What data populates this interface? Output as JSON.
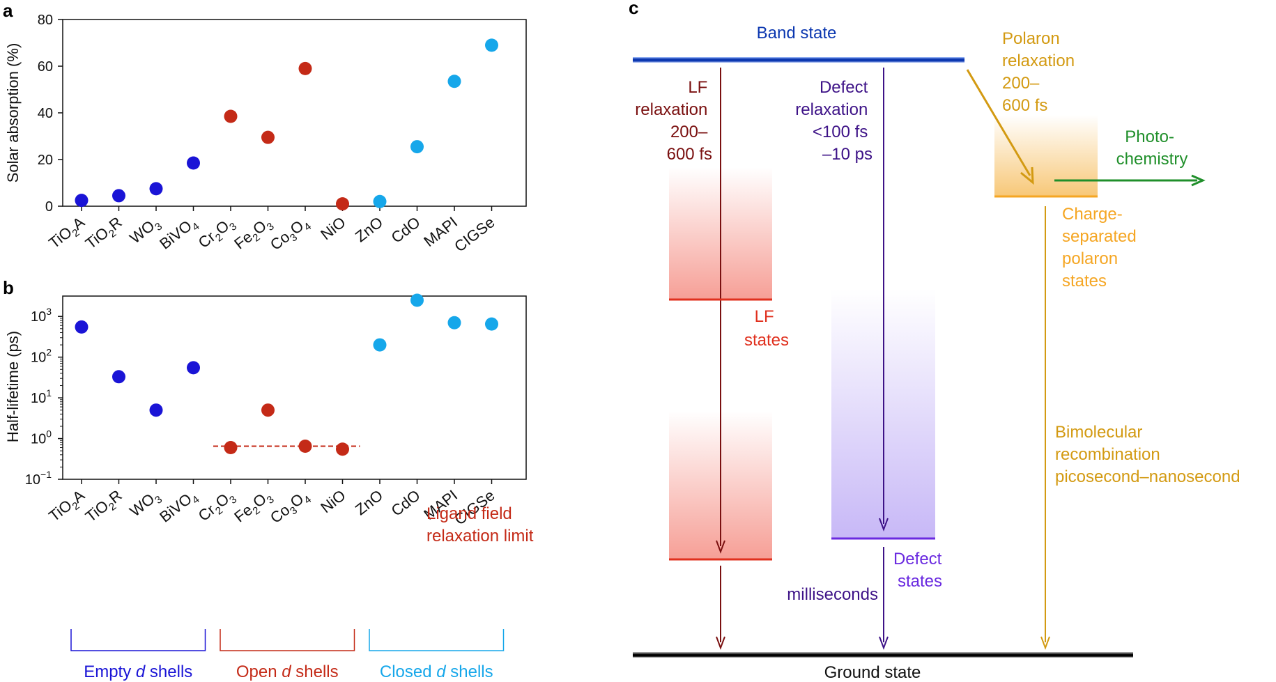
{
  "panel_labels": {
    "a": "a",
    "b": "b",
    "c": "c"
  },
  "colors": {
    "empty": "#1a14d6",
    "open": "#c42a17",
    "closed": "#16a7ea",
    "lf": "#7a1010",
    "defect": "#3d1287",
    "polaron": "#d39a12",
    "photochem": "#1f8f2a",
    "band": "#0b37b0"
  },
  "chart_data": [
    {
      "type": "scatter",
      "id": "a",
      "title": "",
      "xlabel": "",
      "ylabel": "Solar absorption (%)",
      "ylim": [
        0,
        80
      ],
      "yticks": [
        "0",
        "20",
        "40",
        "60",
        "80"
      ],
      "categories": [
        "TiO2A",
        "TiO2R",
        "WO3",
        "BiVO4",
        "Cr2O3",
        "Fe2O3",
        "Co3O4",
        "NiO",
        "ZnO",
        "CdO",
        "MAPI",
        "CIGSe"
      ],
      "groups": [
        "empty",
        "empty",
        "empty",
        "empty",
        "open",
        "open",
        "open",
        "open",
        "closed",
        "closed",
        "closed",
        "closed"
      ],
      "values": [
        2.5,
        4.5,
        7.5,
        18.5,
        38.5,
        29.5,
        59,
        1,
        2,
        25.5,
        53.5,
        69
      ]
    },
    {
      "type": "scatter",
      "id": "b",
      "title": "",
      "xlabel": "",
      "ylabel": "Half-lifetime (ps)",
      "yscale": "log",
      "ylim_log10": [
        -1,
        3.5
      ],
      "yticks": [
        {
          "base": "10",
          "exp": "−1",
          "v": -1
        },
        {
          "base": "10",
          "exp": "0",
          "v": 0
        },
        {
          "base": "10",
          "exp": "1",
          "v": 1
        },
        {
          "base": "10",
          "exp": "2",
          "v": 2
        },
        {
          "base": "10",
          "exp": "3",
          "v": 3
        }
      ],
      "categories": [
        "TiO2A",
        "TiO2R",
        "WO3",
        "BiVO4",
        "Cr2O3",
        "Fe2O3",
        "Co3O4",
        "NiO",
        "ZnO",
        "CdO",
        "MAPI",
        "CIGSe"
      ],
      "groups": [
        "empty",
        "empty",
        "empty",
        "empty",
        "open",
        "open",
        "open",
        "open",
        "closed",
        "closed",
        "closed",
        "closed"
      ],
      "values": [
        550,
        33,
        5,
        55,
        0.6,
        5,
        0.65,
        0.55,
        200,
        2500,
        700,
        650
      ],
      "limit_line": {
        "value": 0.65,
        "label_lines": [
          "Ligand field",
          "relaxation limit"
        ]
      }
    }
  ],
  "category_labels": [
    {
      "parts": [
        [
          "TiO",
          ""
        ],
        [
          "2",
          "sub"
        ],
        [
          "A",
          ""
        ]
      ]
    },
    {
      "parts": [
        [
          "TiO",
          ""
        ],
        [
          "2",
          "sub"
        ],
        [
          "R",
          ""
        ]
      ]
    },
    {
      "parts": [
        [
          "WO",
          ""
        ],
        [
          "3",
          "sub"
        ]
      ]
    },
    {
      "parts": [
        [
          "BiVO",
          ""
        ],
        [
          "4",
          "sub"
        ]
      ]
    },
    {
      "parts": [
        [
          "Cr",
          ""
        ],
        [
          "2",
          "sub"
        ],
        [
          "O",
          ""
        ],
        [
          "3",
          "sub"
        ]
      ]
    },
    {
      "parts": [
        [
          "Fe",
          ""
        ],
        [
          "2",
          "sub"
        ],
        [
          "O",
          ""
        ],
        [
          "3",
          "sub"
        ]
      ]
    },
    {
      "parts": [
        [
          "Co",
          ""
        ],
        [
          "3",
          "sub"
        ],
        [
          "O",
          ""
        ],
        [
          "4",
          "sub"
        ]
      ]
    },
    {
      "parts": [
        [
          "NiO",
          ""
        ]
      ]
    },
    {
      "parts": [
        [
          "ZnO",
          ""
        ]
      ]
    },
    {
      "parts": [
        [
          "CdO",
          ""
        ]
      ]
    },
    {
      "parts": [
        [
          "MAPI",
          ""
        ]
      ]
    },
    {
      "parts": [
        [
          "CIGSe",
          ""
        ]
      ]
    }
  ],
  "brackets": [
    {
      "group": "empty",
      "pre": "Empty ",
      "italic": "d",
      "post": " shells"
    },
    {
      "group": "open",
      "pre": "Open ",
      "italic": "d",
      "post": " shells"
    },
    {
      "group": "closed",
      "pre": "Closed ",
      "italic": "d",
      "post": " shells"
    }
  ],
  "diagram": {
    "band_state": "Band state",
    "ground_state": "Ground state",
    "lf_relax": [
      "LF",
      "relaxation",
      "200–",
      "600 fs"
    ],
    "defect_relax": [
      "Defect",
      "relaxation",
      "<100 fs",
      "–10 ps"
    ],
    "polaron_relax": [
      "Polaron",
      "relaxation",
      "200–",
      "600 fs"
    ],
    "photochem": [
      "Photo-",
      "chemistry"
    ],
    "lf_states": [
      "LF",
      "states"
    ],
    "defect_states": [
      "Defect",
      "states"
    ],
    "milliseconds": "milliseconds",
    "charge_sep": [
      "Charge-",
      "separated",
      "polaron",
      "states"
    ],
    "bimolecular": [
      "Bimolecular",
      "recombination",
      "picosecond–nanosecond"
    ]
  }
}
